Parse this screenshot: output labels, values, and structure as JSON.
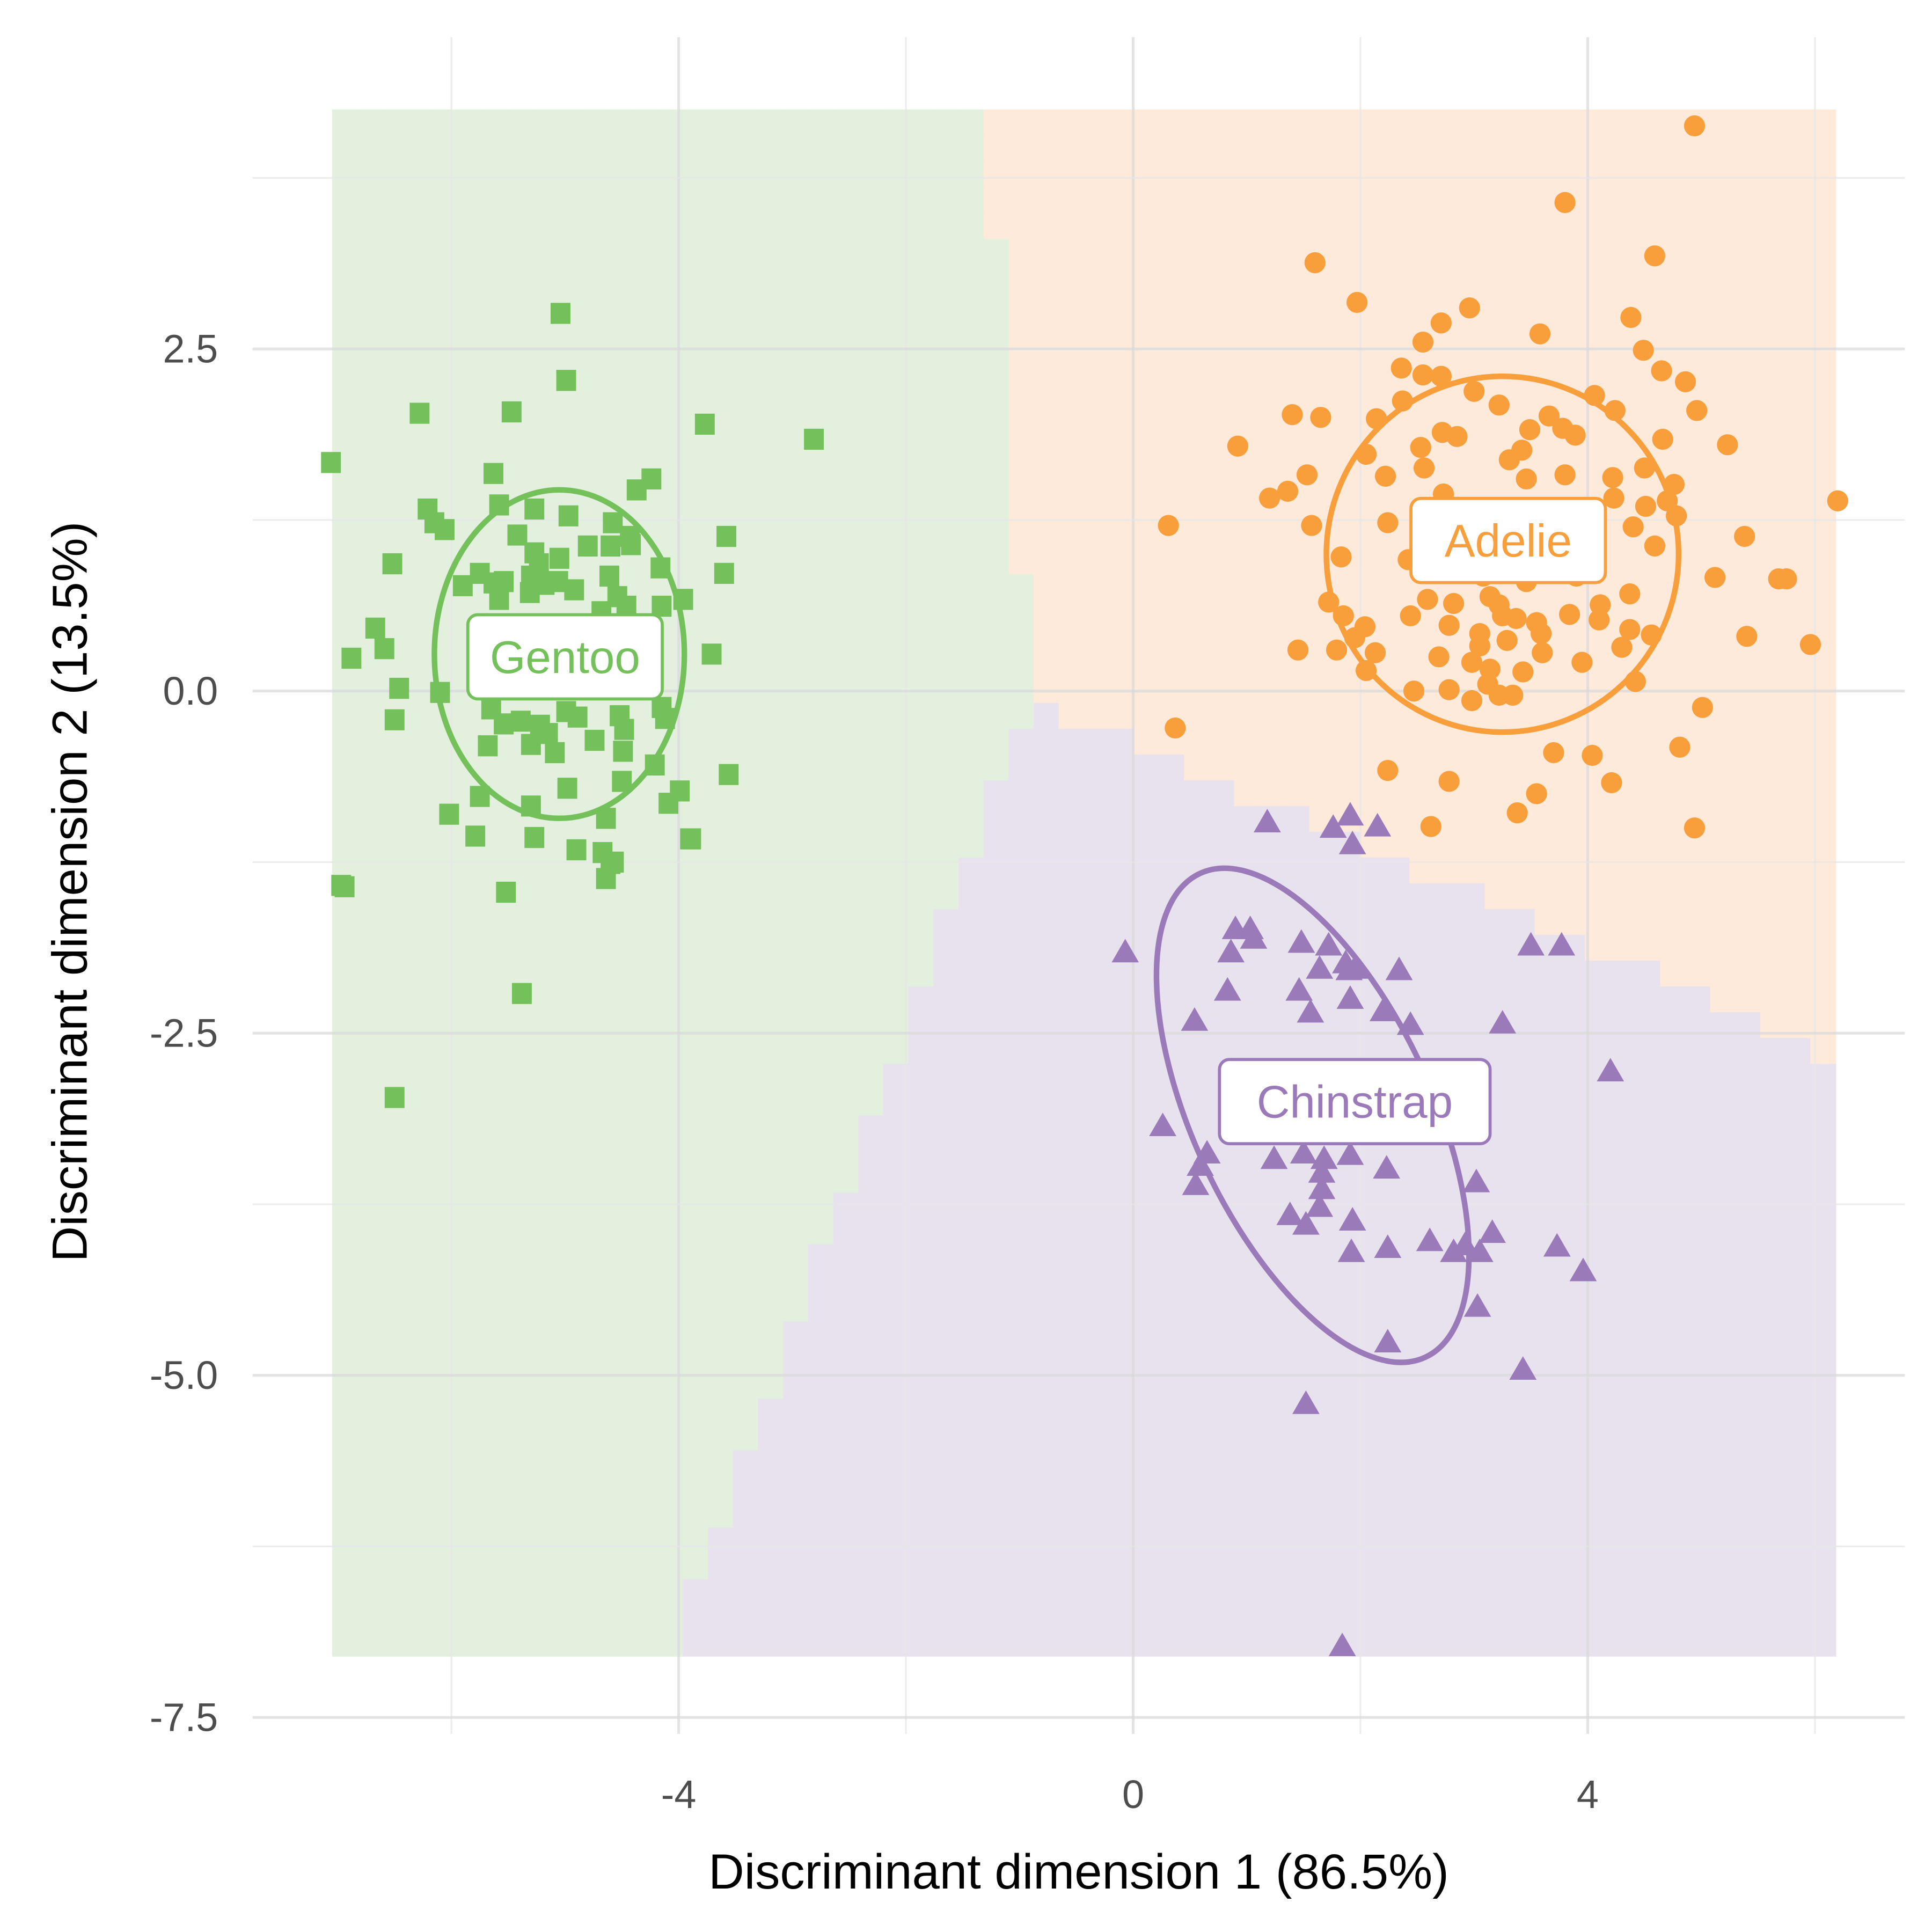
{
  "chart_data": {
    "type": "scatter",
    "title": "",
    "xlabel": "Discriminant dimension 1 (86.5%)",
    "ylabel": "Discriminant dimension 2 (13.5%)",
    "xlim": [
      -7.3,
      6.6
    ],
    "ylim": [
      -7.6,
      4.8
    ],
    "x_ticks": [
      {
        "value": -4,
        "label": "-4"
      },
      {
        "value": 0,
        "label": "0"
      },
      {
        "value": 4,
        "label": "4"
      }
    ],
    "y_ticks": [
      {
        "value": 2.5,
        "label": "2.5"
      },
      {
        "value": 0,
        "label": "0.0"
      },
      {
        "value": -2.5,
        "label": "-2.5"
      },
      {
        "value": -5,
        "label": "-5.0"
      },
      {
        "value": -7.5,
        "label": "-7.5"
      }
    ],
    "grid": true,
    "legend": "none",
    "colors": {
      "Gentoo": "#74c05a",
      "Adelie": "#f89e3a",
      "Chinstrap": "#9a7ab8"
    },
    "region_colors": {
      "Gentoo": "#e2f0dd",
      "Adelie": "#fdeada",
      "Chinstrap": "#e8e2ef"
    },
    "series": [
      {
        "name": "Gentoo",
        "marker": "square",
        "label": "Gentoo",
        "label_pos": [
          -5.0,
          0.25
        ],
        "ellipse": {
          "cx": -5.05,
          "cy": 0.27,
          "rx": 1.1,
          "ry": 1.2,
          "angle": 0
        },
        "points": [
          [
            -5.04,
            2.76
          ],
          [
            -4.99,
            2.27
          ],
          [
            -5.47,
            2.04
          ],
          [
            -6.28,
            2.03
          ],
          [
            -3.77,
            1.95
          ],
          [
            -2.81,
            1.84
          ],
          [
            -7.06,
            1.67
          ],
          [
            -5.63,
            1.59
          ],
          [
            -4.24,
            1.55
          ],
          [
            -4.37,
            1.47
          ],
          [
            -6.21,
            1.33
          ],
          [
            -6.15,
            1.23
          ],
          [
            -6.06,
            1.18
          ],
          [
            -5.58,
            1.36
          ],
          [
            -5.27,
            1.33
          ],
          [
            -4.97,
            1.28
          ],
          [
            -4.58,
            1.23
          ],
          [
            -4.43,
            1.13
          ],
          [
            -4.42,
            1.07
          ],
          [
            -4.6,
            1.06
          ],
          [
            -3.58,
            1.13
          ],
          [
            -3.6,
            0.86
          ],
          [
            -6.52,
            0.93
          ],
          [
            -5.42,
            1.14
          ],
          [
            -5.27,
            1.01
          ],
          [
            -5.23,
            0.93
          ],
          [
            -5.05,
            0.97
          ],
          [
            -4.8,
            1.06
          ],
          [
            -4.16,
            0.9
          ],
          [
            -5.75,
            0.86
          ],
          [
            -5.63,
            0.79
          ],
          [
            -5.54,
            0.8
          ],
          [
            -5.3,
            0.84
          ],
          [
            -5.31,
            0.72
          ],
          [
            -5.18,
            0.78
          ],
          [
            -5.06,
            0.8
          ],
          [
            -4.92,
            0.74
          ],
          [
            -4.61,
            0.84
          ],
          [
            -4.54,
            0.69
          ],
          [
            -4.46,
            0.62
          ],
          [
            -4.15,
            0.62
          ],
          [
            -3.96,
            0.67
          ],
          [
            -5.9,
            0.77
          ],
          [
            -5.58,
            0.67
          ],
          [
            -4.68,
            0.58
          ],
          [
            -6.67,
            0.46
          ],
          [
            -6.88,
            0.24
          ],
          [
            -6.59,
            0.31
          ],
          [
            -6.46,
            0.02
          ],
          [
            -3.71,
            0.27
          ],
          [
            -4.68,
            0.36
          ],
          [
            -4.97,
            0.38
          ],
          [
            -4.48,
            0.32
          ],
          [
            -4.32,
            0.36
          ],
          [
            -4.85,
            0.18
          ],
          [
            -5.42,
            0.13
          ],
          [
            -6.1,
            -0.01
          ],
          [
            -4.99,
            -0.15
          ],
          [
            -5.65,
            -0.13
          ],
          [
            -5.54,
            -0.24
          ],
          [
            -5.39,
            -0.22
          ],
          [
            -5.22,
            -0.25
          ],
          [
            -5.15,
            -0.31
          ],
          [
            -4.89,
            -0.19
          ],
          [
            -4.52,
            -0.18
          ],
          [
            -4.48,
            -0.28
          ],
          [
            -4.15,
            -0.12
          ],
          [
            -4.12,
            -0.2
          ],
          [
            -6.5,
            -0.21
          ],
          [
            -5.68,
            -0.4
          ],
          [
            -5.3,
            -0.39
          ],
          [
            -5.09,
            -0.45
          ],
          [
            -4.74,
            -0.36
          ],
          [
            -4.49,
            -0.44
          ],
          [
            -4.21,
            -0.54
          ],
          [
            -3.56,
            -0.61
          ],
          [
            -5.75,
            -0.77
          ],
          [
            -4.98,
            -0.71
          ],
          [
            -4.5,
            -0.66
          ],
          [
            -3.99,
            -0.73
          ],
          [
            -5.3,
            -0.84
          ],
          [
            -6.02,
            -0.9
          ],
          [
            -4.64,
            -0.93
          ],
          [
            -4.09,
            -0.82
          ],
          [
            -5.79,
            -1.06
          ],
          [
            -5.27,
            -1.07
          ],
          [
            -4.9,
            -1.16
          ],
          [
            -4.67,
            -1.18
          ],
          [
            -4.6,
            -1.26
          ],
          [
            -3.9,
            -1.08
          ],
          [
            -6.97,
            -1.42
          ],
          [
            -6.94,
            -1.43
          ],
          [
            -5.52,
            -1.47
          ],
          [
            -4.64,
            -1.37
          ],
          [
            -5.38,
            -2.21
          ],
          [
            -6.5,
            -2.97
          ],
          [
            -3.89,
            -1.08
          ],
          [
            -4.57,
            -1.25
          ]
        ]
      },
      {
        "name": "Adelie",
        "marker": "circle",
        "label": "Adelie",
        "label_pos": [
          3.3,
          1.1
        ],
        "ellipse": {
          "cx": 3.25,
          "cy": 1.0,
          "rx": 1.55,
          "ry": 1.3,
          "angle": 0
        },
        "points": [
          [
            4.94,
            4.13
          ],
          [
            3.8,
            3.57
          ],
          [
            4.59,
            3.18
          ],
          [
            1.6,
            3.13
          ],
          [
            1.97,
            2.84
          ],
          [
            2.96,
            2.8
          ],
          [
            2.71,
            2.69
          ],
          [
            3.58,
            2.61
          ],
          [
            4.38,
            2.73
          ],
          [
            2.55,
            2.55
          ],
          [
            4.49,
            2.49
          ],
          [
            2.36,
            2.36
          ],
          [
            4.65,
            2.34
          ],
          [
            2.55,
            2.31
          ],
          [
            2.71,
            2.3
          ],
          [
            4.86,
            2.26
          ],
          [
            3.22,
            2.09
          ],
          [
            3.0,
            2.19
          ],
          [
            4.06,
            2.16
          ],
          [
            2.37,
            2.12
          ],
          [
            1.4,
            2.02
          ],
          [
            1.65,
            2.0
          ],
          [
            2.14,
            1.99
          ],
          [
            3.66,
            2.01
          ],
          [
            4.24,
            2.05
          ],
          [
            4.96,
            2.05
          ],
          [
            3.89,
            1.87
          ],
          [
            0.92,
            1.79
          ],
          [
            2.05,
            1.73
          ],
          [
            2.53,
            1.78
          ],
          [
            2.72,
            1.89
          ],
          [
            3.49,
            1.91
          ],
          [
            3.31,
            1.69
          ],
          [
            3.42,
            1.76
          ],
          [
            2.85,
            1.86
          ],
          [
            4.66,
            1.84
          ],
          [
            3.78,
            1.92
          ],
          [
            5.23,
            1.8
          ],
          [
            1.53,
            1.58
          ],
          [
            2.56,
            1.63
          ],
          [
            3.46,
            1.55
          ],
          [
            3.8,
            1.58
          ],
          [
            4.22,
            1.56
          ],
          [
            4.5,
            1.63
          ],
          [
            4.76,
            1.51
          ],
          [
            2.22,
            1.57
          ],
          [
            1.36,
            1.46
          ],
          [
            1.2,
            1.41
          ],
          [
            2.73,
            1.44
          ],
          [
            4.23,
            1.41
          ],
          [
            4.51,
            1.35
          ],
          [
            4.7,
            1.39
          ],
          [
            4.78,
            1.28
          ],
          [
            6.2,
            1.39
          ],
          [
            0.31,
            1.21
          ],
          [
            1.57,
            1.21
          ],
          [
            2.24,
            1.23
          ],
          [
            2.9,
            1.26
          ],
          [
            3.48,
            1.3
          ],
          [
            3.9,
            1.25
          ],
          [
            4.4,
            1.2
          ],
          [
            5.38,
            1.13
          ],
          [
            1.83,
            0.98
          ],
          [
            4.59,
            1.06
          ],
          [
            3.08,
            1.04
          ],
          [
            3.29,
            1.06
          ],
          [
            2.42,
            0.96
          ],
          [
            2.88,
            0.97
          ],
          [
            3.66,
            0.9
          ],
          [
            3.08,
            0.84
          ],
          [
            3.46,
            0.8
          ],
          [
            2.82,
            0.64
          ],
          [
            3.14,
            0.69
          ],
          [
            3.9,
            0.84
          ],
          [
            5.12,
            0.83
          ],
          [
            5.75,
            0.82
          ],
          [
            5.68,
            0.82
          ],
          [
            1.72,
            0.65
          ],
          [
            2.44,
            0.55
          ],
          [
            2.59,
            0.67
          ],
          [
            3.22,
            0.63
          ],
          [
            4.37,
            0.71
          ],
          [
            1.85,
            0.55
          ],
          [
            1.95,
            0.39
          ],
          [
            2.78,
            0.48
          ],
          [
            3.25,
            0.55
          ],
          [
            3.37,
            0.53
          ],
          [
            3.55,
            0.5
          ],
          [
            3.84,
            0.56
          ],
          [
            4.11,
            0.63
          ],
          [
            2.04,
            0.47
          ],
          [
            2.13,
            0.28
          ],
          [
            3.05,
            0.33
          ],
          [
            4.3,
            0.32
          ],
          [
            5.4,
            0.4
          ],
          [
            5.96,
            0.34
          ],
          [
            1.45,
            0.3
          ],
          [
            1.79,
            0.3
          ],
          [
            3.05,
            0.42
          ],
          [
            3.29,
            0.37
          ],
          [
            3.59,
            0.42
          ],
          [
            4.1,
            0.52
          ],
          [
            4.37,
            0.45
          ],
          [
            4.56,
            0.41
          ],
          [
            2.05,
            0.15
          ],
          [
            2.69,
            0.25
          ],
          [
            2.98,
            0.21
          ],
          [
            3.14,
            0.16
          ],
          [
            3.43,
            0.14
          ],
          [
            3.6,
            0.28
          ],
          [
            3.95,
            0.21
          ],
          [
            4.42,
            0.07
          ],
          [
            2.47,
            0.0
          ],
          [
            2.78,
            0.01
          ],
          [
            2.98,
            -0.07
          ],
          [
            3.22,
            -0.03
          ],
          [
            3.12,
            0.05
          ],
          [
            3.34,
            -0.03
          ],
          [
            5.01,
            -0.12
          ],
          [
            0.37,
            -0.27
          ],
          [
            3.7,
            -0.45
          ],
          [
            4.04,
            -0.47
          ],
          [
            4.81,
            -0.41
          ],
          [
            2.24,
            -0.58
          ],
          [
            2.78,
            -0.66
          ],
          [
            3.55,
            -0.75
          ],
          [
            4.21,
            -0.67
          ],
          [
            3.38,
            -0.89
          ],
          [
            2.62,
            -0.99
          ],
          [
            4.94,
            -1.0
          ]
        ]
      },
      {
        "name": "Chinstrap",
        "marker": "triangle",
        "label": "Chinstrap",
        "label_pos": [
          1.95,
          -3.0
        ],
        "ellipse": {
          "cx": 1.58,
          "cy": -3.1,
          "rx": 1.05,
          "ry": 1.95,
          "angle": -25
        },
        "points": [
          [
            1.18,
            -0.96
          ],
          [
            1.91,
            -0.91
          ],
          [
            2.15,
            -0.99
          ],
          [
            1.76,
            -1.0
          ],
          [
            1.93,
            -1.12
          ],
          [
            -0.07,
            -1.91
          ],
          [
            0.9,
            -1.74
          ],
          [
            1.03,
            -1.74
          ],
          [
            1.06,
            -1.81
          ],
          [
            0.86,
            -1.91
          ],
          [
            1.48,
            -1.84
          ],
          [
            1.72,
            -1.86
          ],
          [
            1.64,
            -2.03
          ],
          [
            3.5,
            -1.86
          ],
          [
            3.77,
            -1.86
          ],
          [
            1.87,
            -1.99
          ],
          [
            1.95,
            -2.03
          ],
          [
            2.34,
            -2.04
          ],
          [
            0.83,
            -2.19
          ],
          [
            1.46,
            -2.19
          ],
          [
            1.91,
            -2.25
          ],
          [
            1.56,
            -2.35
          ],
          [
            1.9,
            -2.04
          ],
          [
            2.2,
            -2.34
          ],
          [
            2.44,
            -2.44
          ],
          [
            0.54,
            -2.41
          ],
          [
            3.25,
            -2.43
          ],
          [
            4.2,
            -2.78
          ],
          [
            0.26,
            -3.18
          ],
          [
            0.65,
            -3.38
          ],
          [
            0.55,
            -3.61
          ],
          [
            1.24,
            -3.42
          ],
          [
            1.5,
            -3.38
          ],
          [
            1.68,
            -3.42
          ],
          [
            1.66,
            -3.52
          ],
          [
            1.91,
            -3.39
          ],
          [
            2.23,
            -3.49
          ],
          [
            1.66,
            -3.64
          ],
          [
            1.38,
            -3.83
          ],
          [
            1.52,
            -3.9
          ],
          [
            1.64,
            -3.77
          ],
          [
            1.93,
            -3.87
          ],
          [
            2.24,
            -4.07
          ],
          [
            1.92,
            -4.1
          ],
          [
            2.82,
            -4.1
          ],
          [
            2.92,
            -4.05
          ],
          [
            3.05,
            -4.1
          ],
          [
            3.16,
            -3.96
          ],
          [
            3.02,
            -3.59
          ],
          [
            3.73,
            -4.06
          ],
          [
            3.96,
            -4.24
          ],
          [
            3.03,
            -4.5
          ],
          [
            2.24,
            -4.76
          ],
          [
            3.43,
            -4.96
          ],
          [
            1.52,
            -5.21
          ],
          [
            1.84,
            -6.98
          ],
          [
            0.59,
            -3.47
          ],
          [
            2.61,
            -4.02
          ]
        ]
      }
    ]
  }
}
